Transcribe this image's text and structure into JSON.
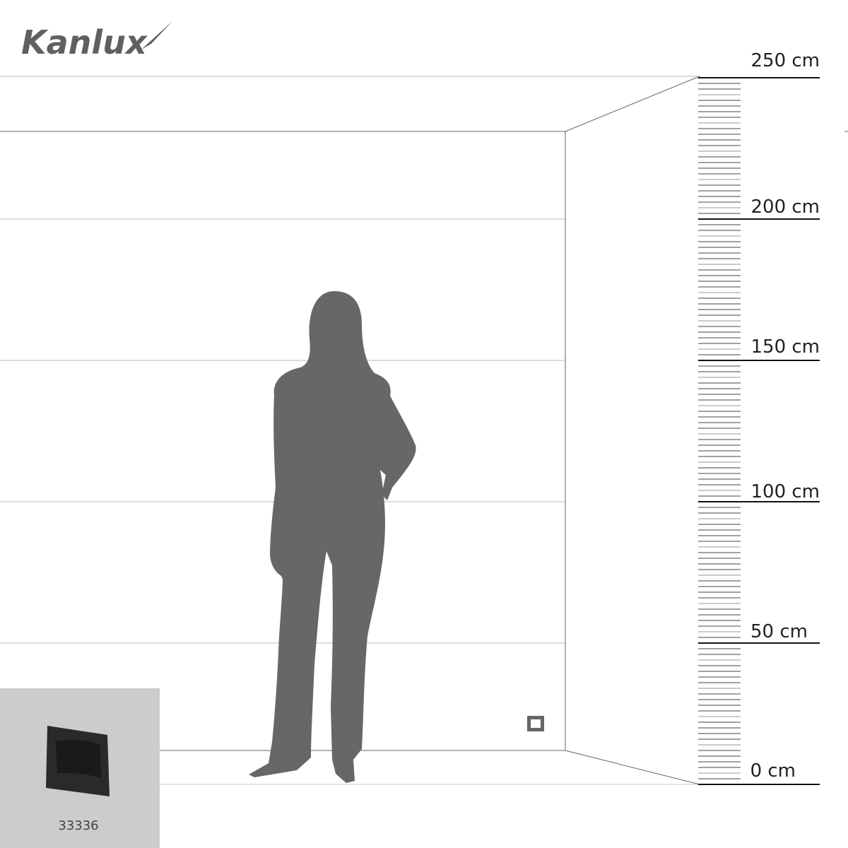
{
  "brand": {
    "logo_text": "Kanlux"
  },
  "scale": {
    "unit": "cm",
    "labels": [
      "250 cm",
      "200 cm",
      "150 cm",
      "100 cm",
      "50 cm",
      "0 cm"
    ],
    "values": [
      250,
      200,
      150,
      100,
      50,
      0
    ]
  },
  "product": {
    "code": "33336"
  },
  "colors": {
    "silhouette": "#676767",
    "product_panel": "#cccccc",
    "product": "#2a2a2a"
  }
}
